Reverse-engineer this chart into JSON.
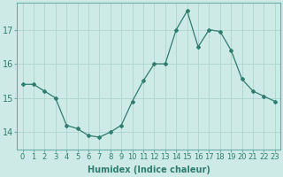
{
  "x": [
    0,
    1,
    2,
    3,
    4,
    5,
    6,
    7,
    8,
    9,
    10,
    11,
    12,
    13,
    14,
    15,
    16,
    17,
    18,
    19,
    20,
    21,
    22,
    23
  ],
  "y": [
    15.4,
    15.4,
    15.2,
    15.0,
    14.2,
    14.1,
    13.9,
    13.85,
    14.0,
    14.2,
    14.9,
    15.5,
    16.0,
    16.0,
    17.0,
    17.55,
    16.5,
    17.0,
    16.95,
    16.4,
    15.55,
    15.2,
    15.05,
    14.9
  ],
  "line_color": "#2e7d6e",
  "marker": "D",
  "marker_size": 2,
  "bg_color": "#ceeae6",
  "grid_color": "#aed4ce",
  "xlabel": "Humidex (Indice chaleur)",
  "ylabel": "",
  "title": "",
  "xlim": [
    -0.5,
    23.5
  ],
  "ylim": [
    13.5,
    17.8
  ],
  "yticks": [
    14,
    15,
    16,
    17
  ],
  "xtick_labels": [
    "0",
    "1",
    "2",
    "3",
    "4",
    "5",
    "6",
    "7",
    "8",
    "9",
    "10",
    "11",
    "12",
    "13",
    "14",
    "15",
    "16",
    "17",
    "18",
    "19",
    "20",
    "21",
    "22",
    "23"
  ],
  "xlabel_fontsize": 7,
  "ytick_fontsize": 7,
  "xtick_fontsize": 6,
  "xlabel_fontweight": "bold"
}
